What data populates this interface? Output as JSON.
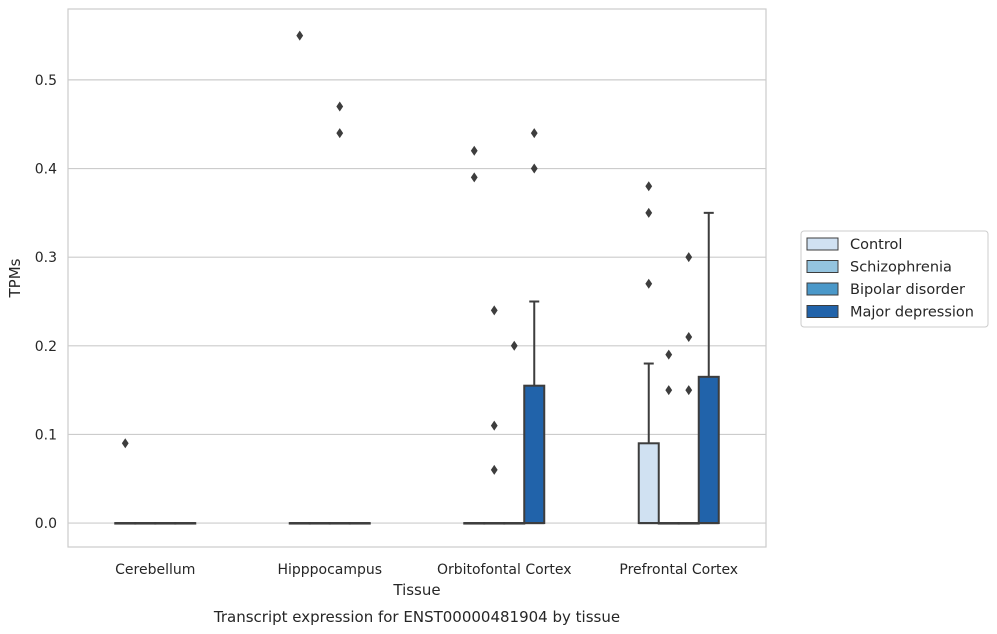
{
  "chart_data": {
    "type": "box",
    "title": "Transcript expression for ENST00000481904 by tissue",
    "xlabel": "Tissue",
    "ylabel": "TPMs",
    "ylim": [
      -0.027,
      0.58
    ],
    "yticks": [
      "0.0",
      "0.1",
      "0.2",
      "0.3",
      "0.4",
      "0.5"
    ],
    "ytick_values": [
      0.0,
      0.1,
      0.2,
      0.3,
      0.4,
      0.5
    ],
    "grid": "horizontal",
    "legend_position": "right",
    "categories": [
      "Cerebellum",
      "Hipppocampus",
      "Orbitofontal Cortex",
      "Prefrontal Cortex"
    ],
    "series": [
      {
        "name": "Control",
        "color": "#d0e1f2",
        "boxes": [
          {
            "q1": 0.0,
            "median": 0.0,
            "q3": 0.0,
            "whisker_low": 0.0,
            "whisker_high": 0.0,
            "outliers": [
              0.09
            ]
          },
          {
            "q1": 0.0,
            "median": 0.0,
            "q3": 0.0,
            "whisker_low": 0.0,
            "whisker_high": 0.0,
            "outliers": [
              0.55
            ]
          },
          {
            "q1": 0.0,
            "median": 0.0,
            "q3": 0.0,
            "whisker_low": 0.0,
            "whisker_high": 0.0,
            "outliers": [
              0.42,
              0.39
            ]
          },
          {
            "q1": 0.0,
            "median": 0.0,
            "q3": 0.09,
            "whisker_low": 0.0,
            "whisker_high": 0.18,
            "outliers": [
              0.38,
              0.35,
              0.27
            ]
          }
        ]
      },
      {
        "name": "Schizophrenia",
        "color": "#94c4df",
        "boxes": [
          {
            "q1": 0.0,
            "median": 0.0,
            "q3": 0.0,
            "whisker_low": 0.0,
            "whisker_high": 0.0,
            "outliers": []
          },
          {
            "q1": 0.0,
            "median": 0.0,
            "q3": 0.0,
            "whisker_low": 0.0,
            "whisker_high": 0.0,
            "outliers": []
          },
          {
            "q1": 0.0,
            "median": 0.0,
            "q3": 0.0,
            "whisker_low": 0.0,
            "whisker_high": 0.0,
            "outliers": [
              0.24,
              0.11,
              0.06
            ]
          },
          {
            "q1": 0.0,
            "median": 0.0,
            "q3": 0.0,
            "whisker_low": 0.0,
            "whisker_high": 0.0,
            "outliers": [
              0.19,
              0.15
            ]
          }
        ]
      },
      {
        "name": "Bipolar disorder",
        "color": "#4a98c9",
        "boxes": [
          {
            "q1": 0.0,
            "median": 0.0,
            "q3": 0.0,
            "whisker_low": 0.0,
            "whisker_high": 0.0,
            "outliers": []
          },
          {
            "q1": 0.0,
            "median": 0.0,
            "q3": 0.0,
            "whisker_low": 0.0,
            "whisker_high": 0.0,
            "outliers": [
              0.47,
              0.44
            ]
          },
          {
            "q1": 0.0,
            "median": 0.0,
            "q3": 0.0,
            "whisker_low": 0.0,
            "whisker_high": 0.0,
            "outliers": [
              0.2
            ]
          },
          {
            "q1": 0.0,
            "median": 0.0,
            "q3": 0.0,
            "whisker_low": 0.0,
            "whisker_high": 0.0,
            "outliers": [
              0.3,
              0.21,
              0.15
            ]
          }
        ]
      },
      {
        "name": "Major depression",
        "color": "#2163aa",
        "boxes": [
          {
            "q1": 0.0,
            "median": 0.0,
            "q3": 0.0,
            "whisker_low": 0.0,
            "whisker_high": 0.0,
            "outliers": []
          },
          {
            "q1": 0.0,
            "median": 0.0,
            "q3": 0.0,
            "whisker_low": 0.0,
            "whisker_high": 0.0,
            "outliers": []
          },
          {
            "q1": 0.0,
            "median": 0.0,
            "q3": 0.155,
            "whisker_low": 0.0,
            "whisker_high": 0.25,
            "outliers": [
              0.44,
              0.4
            ]
          },
          {
            "q1": 0.0,
            "median": 0.0,
            "q3": 0.165,
            "whisker_low": 0.0,
            "whisker_high": 0.35,
            "outliers": []
          }
        ]
      }
    ]
  }
}
